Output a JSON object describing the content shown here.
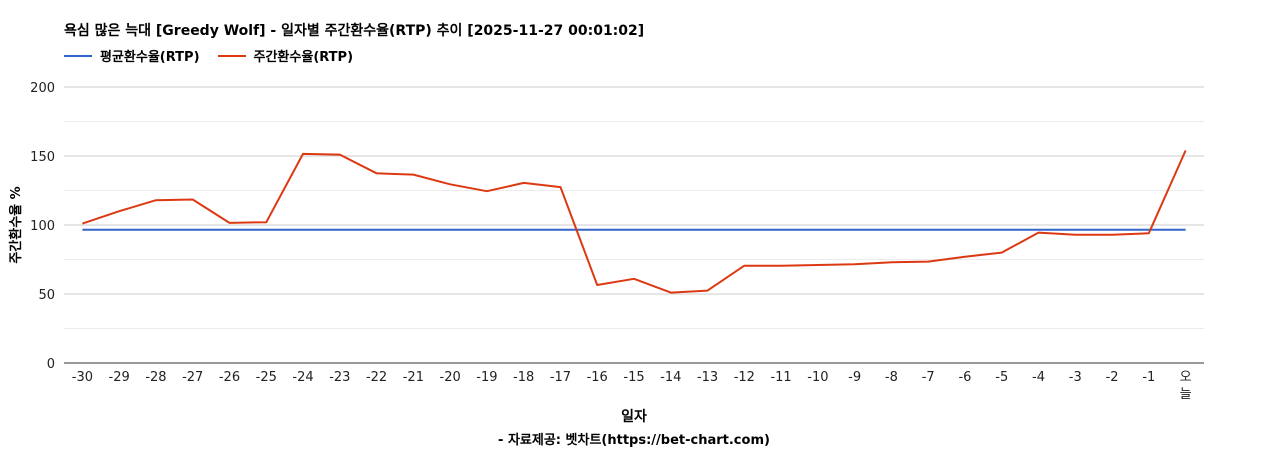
{
  "chart_data": {
    "type": "line",
    "title": "욕심 많은 늑대 [Greedy Wolf] - 일자별 주간환수율(RTP) 추이 [2025-11-27 00:01:02]",
    "xlabel": "일자",
    "ylabel": "주간환수율 %",
    "ylim": [
      0,
      200
    ],
    "yticks": [
      "0",
      "50",
      "100",
      "150",
      "200"
    ],
    "grid": true,
    "legend_position": "top-left",
    "categories": [
      "-30",
      "-29",
      "-28",
      "-27",
      "-26",
      "-25",
      "-24",
      "-23",
      "-22",
      "-21",
      "-20",
      "-19",
      "-18",
      "-17",
      "-16",
      "-15",
      "-14",
      "-13",
      "-12",
      "-11",
      "-10",
      "-9",
      "-8",
      "-7",
      "-6",
      "-5",
      "-4",
      "-3",
      "-2",
      "-1",
      "오늘"
    ],
    "series": [
      {
        "name": "평균환수율(RTP)",
        "color": "#3366cc",
        "values": [
          96.5,
          96.5,
          96.5,
          96.5,
          96.5,
          96.5,
          96.5,
          96.5,
          96.5,
          96.5,
          96.5,
          96.5,
          96.5,
          96.5,
          96.5,
          96.5,
          96.5,
          96.5,
          96.5,
          96.5,
          96.5,
          96.5,
          96.5,
          96.5,
          96.5,
          96.5,
          96.5,
          96.5,
          96.5,
          96.5,
          96.5
        ]
      },
      {
        "name": "주간환수율(RTP)",
        "color": "#dc3912",
        "values": [
          101,
          110,
          118,
          118.5,
          101.5,
          102,
          151.5,
          151,
          137.5,
          136.5,
          129.5,
          124.5,
          130.5,
          127.5,
          56.5,
          61,
          51,
          52.5,
          70.5,
          70.5,
          71,
          71.5,
          73,
          73.5,
          77,
          80,
          94.5,
          93,
          93,
          94,
          154
        ]
      }
    ]
  },
  "source_note": "- 자료제공: 벳차트(https://bet-chart.com)"
}
